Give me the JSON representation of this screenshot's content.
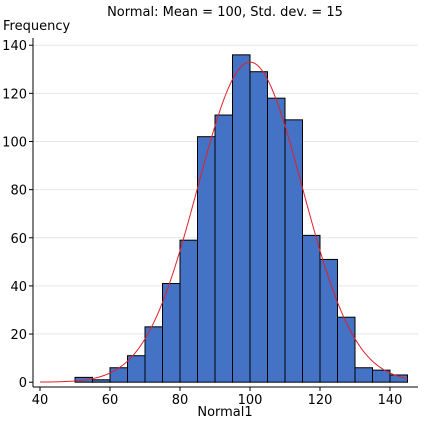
{
  "chart_data": {
    "type": "bar",
    "title": "Normal: Mean = 100, Std. dev. = 15",
    "xlabel": "Normal1",
    "ylabel": "Frequency",
    "xlim": [
      38,
      148
    ],
    "ylim": [
      -2,
      143
    ],
    "x_ticks": [
      40,
      60,
      80,
      100,
      120,
      140
    ],
    "y_ticks": [
      0,
      20,
      40,
      60,
      80,
      100,
      120,
      140
    ],
    "bins": [
      {
        "start": 50,
        "end": 55,
        "value": 2
      },
      {
        "start": 55,
        "end": 60,
        "value": 1
      },
      {
        "start": 60,
        "end": 65,
        "value": 6
      },
      {
        "start": 65,
        "end": 70,
        "value": 11
      },
      {
        "start": 70,
        "end": 75,
        "value": 23
      },
      {
        "start": 75,
        "end": 80,
        "value": 41
      },
      {
        "start": 80,
        "end": 85,
        "value": 59
      },
      {
        "start": 85,
        "end": 90,
        "value": 102
      },
      {
        "start": 90,
        "end": 95,
        "value": 111
      },
      {
        "start": 95,
        "end": 100,
        "value": 136
      },
      {
        "start": 100,
        "end": 105,
        "value": 129
      },
      {
        "start": 105,
        "end": 110,
        "value": 118
      },
      {
        "start": 110,
        "end": 115,
        "value": 109
      },
      {
        "start": 115,
        "end": 120,
        "value": 61
      },
      {
        "start": 120,
        "end": 125,
        "value": 51
      },
      {
        "start": 125,
        "end": 130,
        "value": 27
      },
      {
        "start": 130,
        "end": 135,
        "value": 6
      },
      {
        "start": 135,
        "end": 140,
        "value": 5
      },
      {
        "start": 140,
        "end": 145,
        "value": 3
      }
    ],
    "normal_curve": {
      "mean": 100,
      "std_dev": 15,
      "peak": 133,
      "x_range": [
        40,
        145
      ]
    },
    "grid": true,
    "colors": {
      "bar_fill": "#4472C4",
      "bar_stroke": "#000000",
      "curve": "#E0202A",
      "grid": "#E6E6E6",
      "axis": "#000000"
    }
  }
}
